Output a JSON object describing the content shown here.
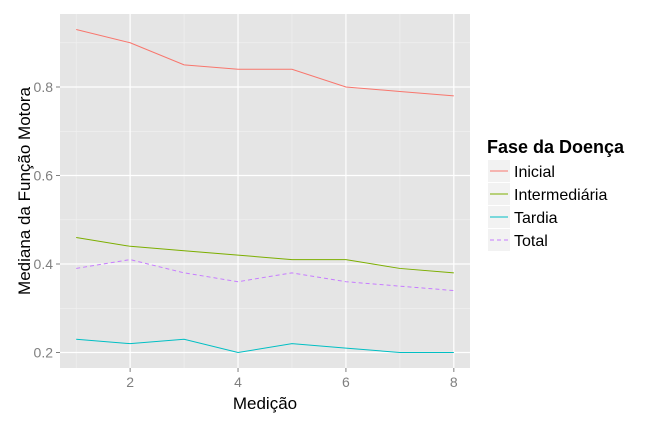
{
  "chart_data": {
    "type": "line",
    "xlabel": "Medição",
    "ylabel": "Mediana da Função Motora",
    "x": [
      1,
      2,
      3,
      4,
      5,
      6,
      7,
      8
    ],
    "xlim": [
      0.7,
      8.3
    ],
    "ylim": [
      0.165,
      0.965
    ],
    "x_ticks": [
      2,
      4,
      6,
      8
    ],
    "y_ticks": [
      0.2,
      0.4,
      0.6,
      0.8
    ],
    "x_tick_labels": [
      "2",
      "4",
      "6",
      "8"
    ],
    "y_tick_labels": [
      "0.2",
      "0.4",
      "0.6",
      "0.8"
    ],
    "grid": true,
    "legend_title": "Fase da Doença",
    "legend_position": "right",
    "series": [
      {
        "name": "Inicial",
        "color": "#F8766D",
        "dash": "solid",
        "values": [
          0.93,
          0.9,
          0.85,
          0.84,
          0.84,
          0.8,
          0.79,
          0.78
        ]
      },
      {
        "name": "Intermediária",
        "color": "#7CAE00",
        "dash": "solid",
        "values": [
          0.46,
          0.44,
          0.43,
          0.42,
          0.41,
          0.41,
          0.39,
          0.38
        ]
      },
      {
        "name": "Tardia",
        "color": "#00BFC4",
        "dash": "solid",
        "values": [
          0.23,
          0.22,
          0.23,
          0.2,
          0.22,
          0.21,
          0.2,
          0.2
        ]
      },
      {
        "name": "Total",
        "color": "#C77CFF",
        "dash": "dashed",
        "values": [
          0.39,
          0.41,
          0.38,
          0.36,
          0.38,
          0.36,
          0.35,
          0.34
        ]
      }
    ]
  }
}
